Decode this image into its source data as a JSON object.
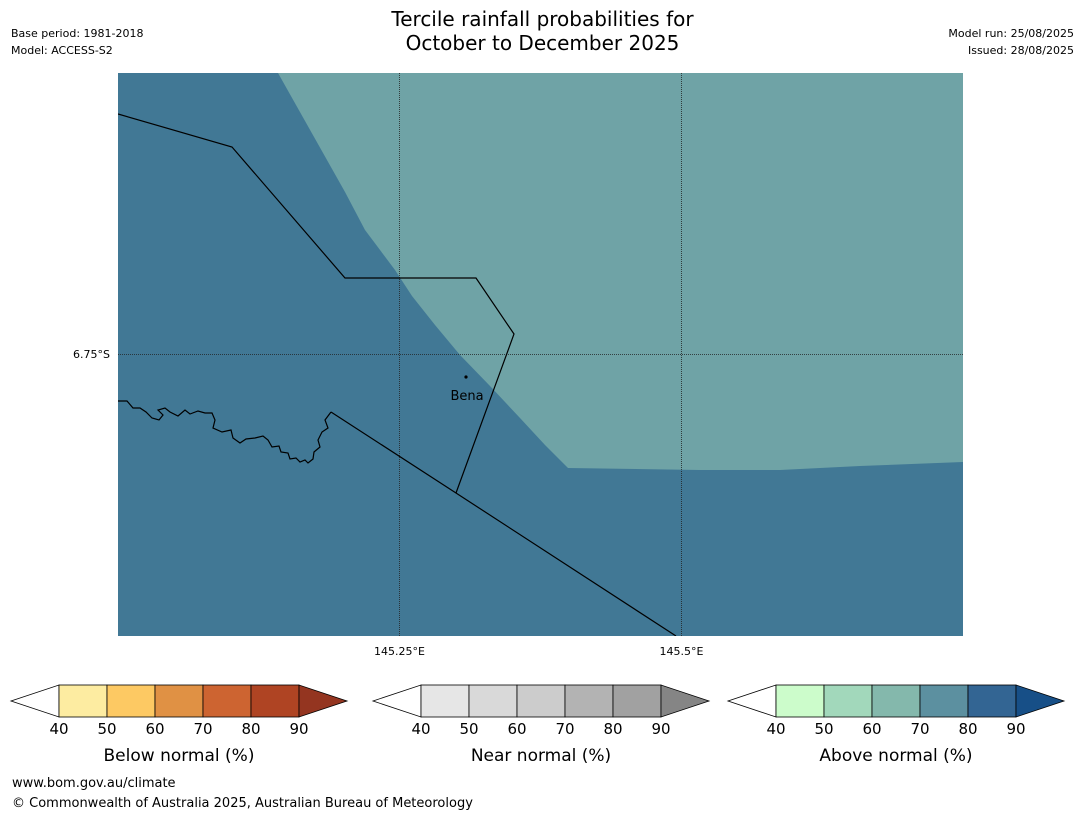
{
  "header": {
    "title_line1": "Tercile rainfall probabilities for",
    "title_line2": "October to December 2025",
    "base_period": "Base period: 1981-2018",
    "model": "Model: ACCESS-S2",
    "model_run": "Model run: 25/08/2025",
    "issued": "Issued: 28/08/2025"
  },
  "map": {
    "lat_label": "6.75°S",
    "lon_labels": [
      "145.25°E",
      "145.5°E"
    ],
    "place_label": "Bena",
    "colors": {
      "above_60_70": "#6fa3a6",
      "above_80_90": "#417895"
    }
  },
  "legends": [
    {
      "title": "Below normal (%)",
      "ticks": [
        "40",
        "50",
        "60",
        "70",
        "80",
        "90"
      ],
      "colors": [
        "#ffffff",
        "#fdeca1",
        "#fdc963",
        "#e09144",
        "#cd6431",
        "#af4423",
        "#943520"
      ]
    },
    {
      "title": "Near normal (%)",
      "ticks": [
        "40",
        "50",
        "60",
        "70",
        "80",
        "90"
      ],
      "colors": [
        "#ffffff",
        "#e6e6e6",
        "#d9d9d9",
        "#cccccc",
        "#b3b3b3",
        "#a1a1a1",
        "#858585"
      ]
    },
    {
      "title": "Above normal (%)",
      "ticks": [
        "40",
        "50",
        "60",
        "70",
        "80",
        "90"
      ],
      "colors": [
        "#ffffff",
        "#ccfccb",
        "#a2d8bb",
        "#84b8ac",
        "#5c90a0",
        "#336593",
        "#174f87"
      ]
    }
  ],
  "footer": {
    "url": "www.bom.gov.au/climate",
    "copyright": "© Commonwealth of Australia 2025, Australian Bureau of Meteorology"
  }
}
